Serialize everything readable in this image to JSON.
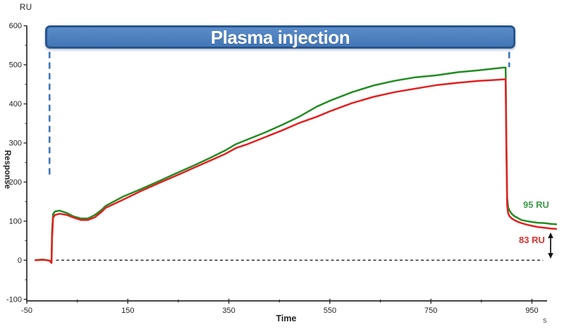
{
  "labels": {
    "y_unit": "RU",
    "y_axis": "Response",
    "x_axis": "Time",
    "x_unit": "s",
    "banner": "Plasma injection",
    "green_annotation": "95 RU",
    "red_annotation": "83 RU"
  },
  "colors": {
    "banner_fill": "#4b80c0",
    "banner_border": "#28558f",
    "banner_text": "#ffffff",
    "injection_dash_blue": "#3e74b8",
    "axis": "#2b2b2b",
    "tick_text": "#222222",
    "baseline_dash": "#3a3a3a",
    "green_curve": "#228c22",
    "red_curve": "#e32020",
    "green_label": "#3f9b4a",
    "red_label": "#e03030",
    "arrow": "#111111"
  },
  "chart_data": {
    "type": "line",
    "title": "Plasma injection",
    "xlabel": "Time",
    "x_unit": "s",
    "ylabel": "Response",
    "y_unit": "RU",
    "xlim": [
      -50,
      980
    ],
    "ylim": [
      -104,
      600
    ],
    "x_major_ticks": [
      -50,
      150,
      350,
      550,
      750,
      950
    ],
    "x_minor_ticks": [
      50,
      250,
      450,
      650,
      850
    ],
    "y_major_ticks": [
      600,
      500,
      400,
      300,
      200,
      100,
      0,
      -100
    ],
    "y_minor_ticks": [
      550,
      450,
      350,
      250,
      150,
      50,
      -50
    ],
    "grid": false,
    "legend": "none",
    "baseline_dash": {
      "ru": 0,
      "t_start": 8,
      "t_end": 972
    },
    "injection_markers": [
      {
        "t": -5,
        "ru_top": 533,
        "ru_bottom": 218
      },
      {
        "t": 905,
        "ru_top": 533,
        "ru_bottom": 494
      }
    ],
    "difference_arrow": {
      "t": 987,
      "ru_top": 71,
      "ru_bottom": 4
    },
    "series": [
      {
        "name": "green_sensorgram",
        "color": "#228c22",
        "final_ru": 95,
        "points": [
          [
            -33,
            0
          ],
          [
            -19,
            2
          ],
          [
            -5,
            -1
          ],
          [
            -1,
            -4
          ],
          [
            0,
            73
          ],
          [
            2,
            118
          ],
          [
            6,
            125
          ],
          [
            15,
            127
          ],
          [
            29,
            121
          ],
          [
            43,
            112
          ],
          [
            57,
            107
          ],
          [
            71,
            107
          ],
          [
            85,
            116
          ],
          [
            99,
            130
          ],
          [
            106,
            139
          ],
          [
            141,
            163
          ],
          [
            176,
            182
          ],
          [
            211,
            202
          ],
          [
            245,
            222
          ],
          [
            280,
            242
          ],
          [
            315,
            263
          ],
          [
            343,
            281
          ],
          [
            364,
            297
          ],
          [
            385,
            308
          ],
          [
            420,
            326
          ],
          [
            455,
            346
          ],
          [
            489,
            367
          ],
          [
            524,
            393
          ],
          [
            552,
            409
          ],
          [
            594,
            430
          ],
          [
            636,
            447
          ],
          [
            678,
            459
          ],
          [
            719,
            468
          ],
          [
            761,
            473
          ],
          [
            803,
            481
          ],
          [
            845,
            486
          ],
          [
            873,
            490
          ],
          [
            894,
            493
          ],
          [
            898,
            493
          ],
          [
            899.5,
            300
          ],
          [
            901,
            160
          ],
          [
            903,
            135
          ],
          [
            906,
            126
          ],
          [
            910,
            119
          ],
          [
            915,
            113
          ],
          [
            921,
            109
          ],
          [
            929,
            103
          ],
          [
            940,
            100
          ],
          [
            950,
            98
          ],
          [
            962,
            96
          ],
          [
            975,
            95
          ],
          [
            988,
            93
          ],
          [
            998,
            92
          ]
        ]
      },
      {
        "name": "red_sensorgram",
        "color": "#e32020",
        "final_ru": 83,
        "points": [
          [
            -33,
            0
          ],
          [
            -15,
            1
          ],
          [
            -5,
            -1
          ],
          [
            -1,
            -7
          ],
          [
            0,
            55
          ],
          [
            2,
            109
          ],
          [
            6,
            116
          ],
          [
            15,
            119
          ],
          [
            29,
            116
          ],
          [
            43,
            109
          ],
          [
            57,
            103
          ],
          [
            71,
            103
          ],
          [
            85,
            110
          ],
          [
            99,
            125
          ],
          [
            106,
            134
          ],
          [
            141,
            155
          ],
          [
            176,
            177
          ],
          [
            211,
            197
          ],
          [
            245,
            216
          ],
          [
            280,
            236
          ],
          [
            315,
            256
          ],
          [
            343,
            272
          ],
          [
            364,
            287
          ],
          [
            385,
            296
          ],
          [
            420,
            314
          ],
          [
            455,
            332
          ],
          [
            489,
            351
          ],
          [
            524,
            367
          ],
          [
            552,
            382
          ],
          [
            594,
            402
          ],
          [
            636,
            418
          ],
          [
            678,
            430
          ],
          [
            719,
            439
          ],
          [
            761,
            448
          ],
          [
            803,
            454
          ],
          [
            845,
            459
          ],
          [
            873,
            461
          ],
          [
            898,
            463
          ],
          [
            899.5,
            280
          ],
          [
            901,
            140
          ],
          [
            903,
            120
          ],
          [
            906,
            112
          ],
          [
            910,
            107
          ],
          [
            915,
            103
          ],
          [
            921,
            99
          ],
          [
            929,
            95
          ],
          [
            940,
            91
          ],
          [
            950,
            88
          ],
          [
            962,
            85
          ],
          [
            975,
            83
          ],
          [
            988,
            81
          ],
          [
            998,
            80
          ]
        ]
      }
    ]
  }
}
